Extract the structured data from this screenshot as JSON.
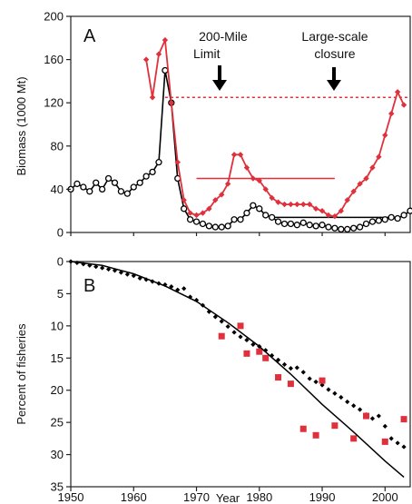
{
  "chart_data": [
    {
      "panel": "A",
      "type": "line",
      "ylabel": "Biomass (1000 Mt)",
      "xlabel": "",
      "xlim": [
        1950,
        2004
      ],
      "ylim": [
        0,
        200
      ],
      "yticks": [
        0,
        40,
        80,
        120,
        160,
        200
      ],
      "grid": false,
      "series": [
        {
          "color": "#000000",
          "marker": "open-circle",
          "x": [
            1950,
            1951,
            1952,
            1953,
            1954,
            1955,
            1956,
            1957,
            1958,
            1959,
            1960,
            1961,
            1962,
            1963,
            1964,
            1965,
            1966,
            1967,
            1968,
            1969,
            1970,
            1971,
            1972,
            1973,
            1974,
            1975,
            1976,
            1977,
            1978,
            1979,
            1980,
            1981,
            1982,
            1983,
            1984,
            1985,
            1986,
            1987,
            1988,
            1989,
            1990,
            1991,
            1992,
            1993,
            1994,
            1995,
            1996,
            1997,
            1998,
            1999,
            2000,
            2001,
            2002,
            2003,
            2004
          ],
          "values": [
            40,
            45,
            42,
            38,
            46,
            40,
            50,
            46,
            38,
            36,
            42,
            46,
            52,
            56,
            65,
            150,
            120,
            50,
            22,
            12,
            10,
            8,
            6,
            5,
            5,
            6,
            12,
            12,
            18,
            25,
            22,
            16,
            14,
            10,
            8,
            8,
            7,
            9,
            7,
            6,
            7,
            5,
            4,
            3,
            3,
            4,
            5,
            8,
            10,
            11,
            12,
            14,
            13,
            16,
            20
          ]
        },
        {
          "color": "#e0303c",
          "marker": "filled-diamond",
          "x": [
            1962,
            1963,
            1964,
            1965,
            1966,
            1967,
            1968,
            1969,
            1970,
            1971,
            1972,
            1973,
            1974,
            1975,
            1976,
            1977,
            1978,
            1979,
            1980,
            1981,
            1982,
            1983,
            1984,
            1985,
            1986,
            1987,
            1988,
            1989,
            1990,
            1991,
            1992,
            1993,
            1994,
            1995,
            1996,
            1997,
            1998,
            1999,
            2000,
            2001,
            2002,
            2003
          ],
          "values": [
            160,
            125,
            165,
            178,
            120,
            65,
            30,
            18,
            16,
            18,
            22,
            30,
            35,
            45,
            72,
            72,
            60,
            50,
            48,
            40,
            32,
            28,
            26,
            26,
            26,
            26,
            26,
            22,
            20,
            16,
            15,
            20,
            30,
            38,
            45,
            50,
            60,
            70,
            90,
            110,
            130,
            118
          ]
        }
      ],
      "reference_lines": [
        {
          "color": "#e0303c",
          "style": "dotted",
          "y": 125,
          "x": [
            1965,
            2004
          ]
        },
        {
          "color": "#e0303c",
          "style": "solid",
          "y": 50,
          "x": [
            1970,
            1992
          ]
        },
        {
          "color": "#000000",
          "style": "solid",
          "y": 14,
          "x": [
            1982,
            2002
          ]
        }
      ],
      "annotations": [
        {
          "lines": [
            "200-Mile",
            "Limit"
          ],
          "x": 1977
        },
        {
          "lines": [
            "Large-scale",
            "closure"
          ],
          "x": 1992
        }
      ]
    },
    {
      "panel": "B",
      "type": "scatter",
      "ylabel": "Percent of fisheries",
      "xlabel": "Year",
      "xlim": [
        1950,
        2004
      ],
      "ylim": [
        35,
        0
      ],
      "yticks": [
        0,
        5,
        10,
        15,
        20,
        25,
        30,
        35
      ],
      "xticks": [
        1950,
        1960,
        1970,
        1980,
        1990,
        2000
      ],
      "grid": false,
      "series": [
        {
          "color": "#000000",
          "marker": "filled-diamond",
          "x": [
            1950,
            1951,
            1952,
            1953,
            1954,
            1955,
            1956,
            1957,
            1958,
            1959,
            1960,
            1961,
            1962,
            1963,
            1964,
            1965,
            1966,
            1967,
            1968,
            1969,
            1970,
            1971,
            1972,
            1973,
            1974,
            1975,
            1976,
            1977,
            1978,
            1979,
            1980,
            1981,
            1982,
            1983,
            1984,
            1985,
            1986,
            1987,
            1988,
            1989,
            1990,
            1991,
            1992,
            1993,
            1994,
            1995,
            1996,
            1997,
            1998,
            1999,
            2000,
            2001,
            2002,
            2003
          ],
          "values": [
            0.0,
            0.2,
            0.4,
            0.6,
            0.8,
            1.0,
            1.2,
            1.4,
            1.7,
            2.0,
            2.2,
            2.6,
            2.8,
            3.1,
            3.4,
            3.6,
            3.9,
            4.4,
            4.2,
            5.5,
            6.0,
            6.8,
            7.8,
            8.6,
            9.3,
            10.1,
            11.0,
            11.7,
            12.2,
            12.9,
            13.2,
            13.8,
            14.6,
            15.3,
            16.0,
            16.6,
            16.5,
            17.2,
            18.2,
            18.7,
            19.2,
            19.9,
            20.5,
            21.1,
            21.8,
            22.4,
            23.0,
            23.8,
            24.4,
            24.0,
            25.6,
            27.5,
            28.2,
            28.8
          ]
        },
        {
          "color": "#e0303c",
          "marker": "filled-square",
          "x": [
            1974,
            1977,
            1978,
            1980,
            1981,
            1983,
            1985,
            1987,
            1989,
            1990,
            1992,
            1995,
            1997,
            2000,
            2003
          ],
          "values": [
            11.6,
            10.0,
            14.3,
            14.0,
            15.0,
            18.0,
            19.0,
            26.0,
            27.0,
            18.5,
            25.5,
            27.5,
            24.0,
            28.0,
            24.5
          ]
        },
        {
          "color": "#000000",
          "marker": "none",
          "style": "curve",
          "x": [
            1950,
            1955,
            1960,
            1965,
            1970,
            1975,
            1980,
            1985,
            1990,
            1995,
            2000,
            2003
          ],
          "values": [
            0,
            0.6,
            1.9,
            3.8,
            6.2,
            9.5,
            13.2,
            17.5,
            22.2,
            26.5,
            31.0,
            33.5
          ]
        }
      ]
    }
  ],
  "panel_a_letter": "A",
  "panel_b_letter": "B",
  "panel_a_ylabel": "Biomass (1000 Mt)",
  "panel_b_ylabel": "Percent of fisheries",
  "xlabel": "Year",
  "annot_200_line1": "200-Mile",
  "annot_200_line2": "Limit",
  "annot_closure_line1": "Large-scale",
  "annot_closure_line2": "closure"
}
